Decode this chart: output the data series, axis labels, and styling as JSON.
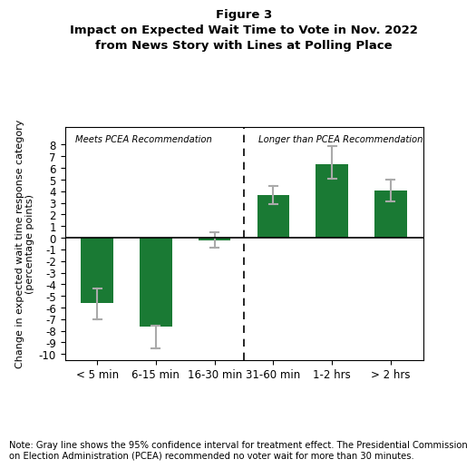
{
  "title_line1": "Figure 3",
  "title_line2": "Impact on Expected Wait Time to Vote in Nov. 2022",
  "title_line3": "from News Story with Lines at Polling Place",
  "ylabel": "Change in expected wait time response category\n(percentage points)",
  "xlabel_labels": [
    "< 5 min",
    "6-15 min",
    "16-30 min",
    "31-60 min",
    "1-2 hrs",
    "> 2 hrs"
  ],
  "values": [
    -5.6,
    -7.6,
    -0.2,
    3.65,
    6.35,
    4.05
  ],
  "ci_lower": [
    -7.0,
    -9.5,
    -0.85,
    2.85,
    5.1,
    3.1
  ],
  "ci_upper": [
    -4.4,
    -7.55,
    0.5,
    4.45,
    7.85,
    5.0
  ],
  "bar_color": "#1a7a34",
  "ci_color": "#aaaaaa",
  "ylim": [
    -10.5,
    9.5
  ],
  "yticks": [
    -10,
    -9,
    -8,
    -7,
    -6,
    -5,
    -4,
    -3,
    -2,
    -1,
    0,
    1,
    2,
    3,
    4,
    5,
    6,
    7,
    8
  ],
  "dashed_line_x": 2.5,
  "left_label": "Meets PCEA Recommendation",
  "right_label": "Longer than PCEA Recommendation",
  "note": "Note: Gray line shows the 95% confidence interval for treatment effect. The Presidential Commission\non Election Administration (PCEA) recommended no voter wait for more than 30 minutes.",
  "background_color": "#ffffff",
  "bar_width": 0.55
}
